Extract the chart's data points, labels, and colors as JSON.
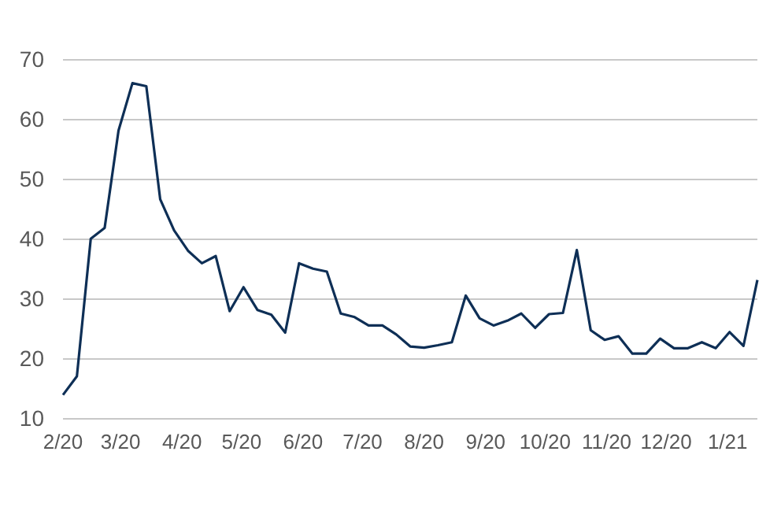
{
  "chart_data": {
    "type": "line",
    "x": [
      "2020-02-01",
      "2020-02-08",
      "2020-02-15",
      "2020-02-22",
      "2020-02-29",
      "2020-03-07",
      "2020-03-14",
      "2020-03-21",
      "2020-03-28",
      "2020-04-04",
      "2020-04-11",
      "2020-04-18",
      "2020-04-25",
      "2020-05-02",
      "2020-05-09",
      "2020-05-16",
      "2020-05-23",
      "2020-05-30",
      "2020-06-06",
      "2020-06-13",
      "2020-06-20",
      "2020-06-27",
      "2020-07-04",
      "2020-07-11",
      "2020-07-18",
      "2020-07-25",
      "2020-08-01",
      "2020-08-08",
      "2020-08-15",
      "2020-08-22",
      "2020-08-29",
      "2020-09-05",
      "2020-09-12",
      "2020-09-19",
      "2020-09-26",
      "2020-10-03",
      "2020-10-10",
      "2020-10-17",
      "2020-10-24",
      "2020-10-31",
      "2020-11-07",
      "2020-11-14",
      "2020-11-21",
      "2020-11-28",
      "2020-12-05",
      "2020-12-12",
      "2020-12-19",
      "2020-12-26",
      "2021-01-02",
      "2021-01-09",
      "2021-01-16"
    ],
    "series": [
      {
        "color": "#0e2f56",
        "values": [
          14.0,
          17.1,
          40.1,
          41.9,
          58.2,
          66.1,
          65.6,
          46.7,
          41.5,
          38.1,
          36.0,
          37.2,
          28.0,
          32.0,
          28.2,
          27.4,
          24.4,
          36.0,
          35.1,
          34.6,
          27.6,
          27.0,
          25.6,
          25.6,
          24.1,
          22.1,
          21.9,
          22.3,
          22.8,
          30.6,
          26.8,
          25.6,
          26.4,
          27.6,
          25.2,
          27.5,
          27.7,
          38.2,
          24.8,
          23.2,
          23.8,
          20.9,
          20.9,
          23.4,
          21.8,
          21.8,
          22.8,
          21.8,
          24.5,
          22.2,
          33.2
        ]
      }
    ],
    "xlim": [
      "2020-02-01",
      "2021-01-16"
    ],
    "xticks": [
      {
        "value": "2020-02-01",
        "label": "2/20"
      },
      {
        "value": "2020-03-01",
        "label": "3/20"
      },
      {
        "value": "2020-04-01",
        "label": "4/20"
      },
      {
        "value": "2020-05-01",
        "label": "5/20"
      },
      {
        "value": "2020-06-01",
        "label": "6/20"
      },
      {
        "value": "2020-07-01",
        "label": "7/20"
      },
      {
        "value": "2020-08-01",
        "label": "8/20"
      },
      {
        "value": "2020-09-01",
        "label": "9/20"
      },
      {
        "value": "2020-10-01",
        "label": "10/20"
      },
      {
        "value": "2020-11-01",
        "label": "11/20"
      },
      {
        "value": "2020-12-01",
        "label": "12/20"
      },
      {
        "value": "2021-01-01",
        "label": "1/21"
      }
    ],
    "ylim": [
      10,
      70
    ],
    "yticks": [
      10,
      20,
      30,
      40,
      50,
      60,
      70
    ],
    "grid": "y",
    "line_style": "solid",
    "marker": "none"
  }
}
